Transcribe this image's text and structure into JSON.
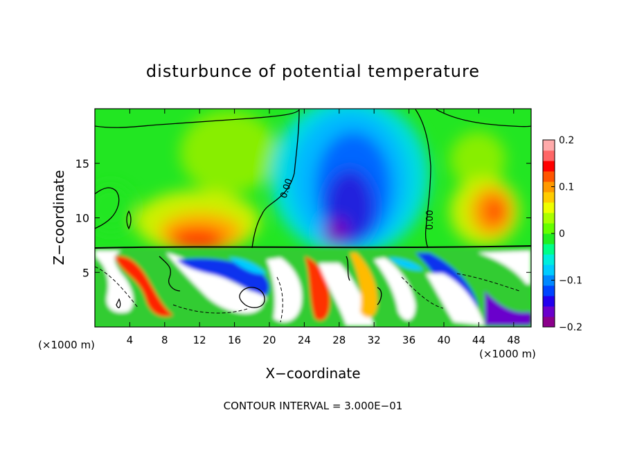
{
  "chart_data": {
    "type": "heatmap",
    "title": "disturbunce of potential temperature",
    "xlabel": "X−coordinate",
    "ylabel": "Z−coordinate",
    "x_unit_left": "(×1000 m)",
    "x_unit_right": "(×1000 m)",
    "xlim": [
      0,
      50
    ],
    "ylim": [
      0,
      20
    ],
    "x_ticks": [
      4,
      8,
      12,
      16,
      20,
      24,
      28,
      32,
      36,
      40,
      44,
      48
    ],
    "y_ticks": [
      5,
      10,
      15
    ],
    "colorbar": {
      "range": [
        -0.2,
        0.2
      ],
      "tick_labels": [
        "0.2",
        "0.1",
        "0",
        "−0.1",
        "−0.2"
      ],
      "tick_values": [
        0.2,
        0.1,
        0,
        -0.1,
        -0.2
      ],
      "colors": [
        "#8b008b",
        "#6a00cc",
        "#2200ee",
        "#0044ff",
        "#0088ff",
        "#00ccff",
        "#00eedd",
        "#00ff88",
        "#22ee22",
        "#66ff00",
        "#aaff00",
        "#eeff00",
        "#ffcc00",
        "#ff9900",
        "#ff5500",
        "#ff0000",
        "#ff6666",
        "#ffaaaa"
      ]
    },
    "contour_labels": [
      "0.00",
      "0.00"
    ],
    "contour_interval": "CONTOUR INTERVAL = 3.000E−01",
    "grid": false,
    "legend": "colorbar-right"
  }
}
